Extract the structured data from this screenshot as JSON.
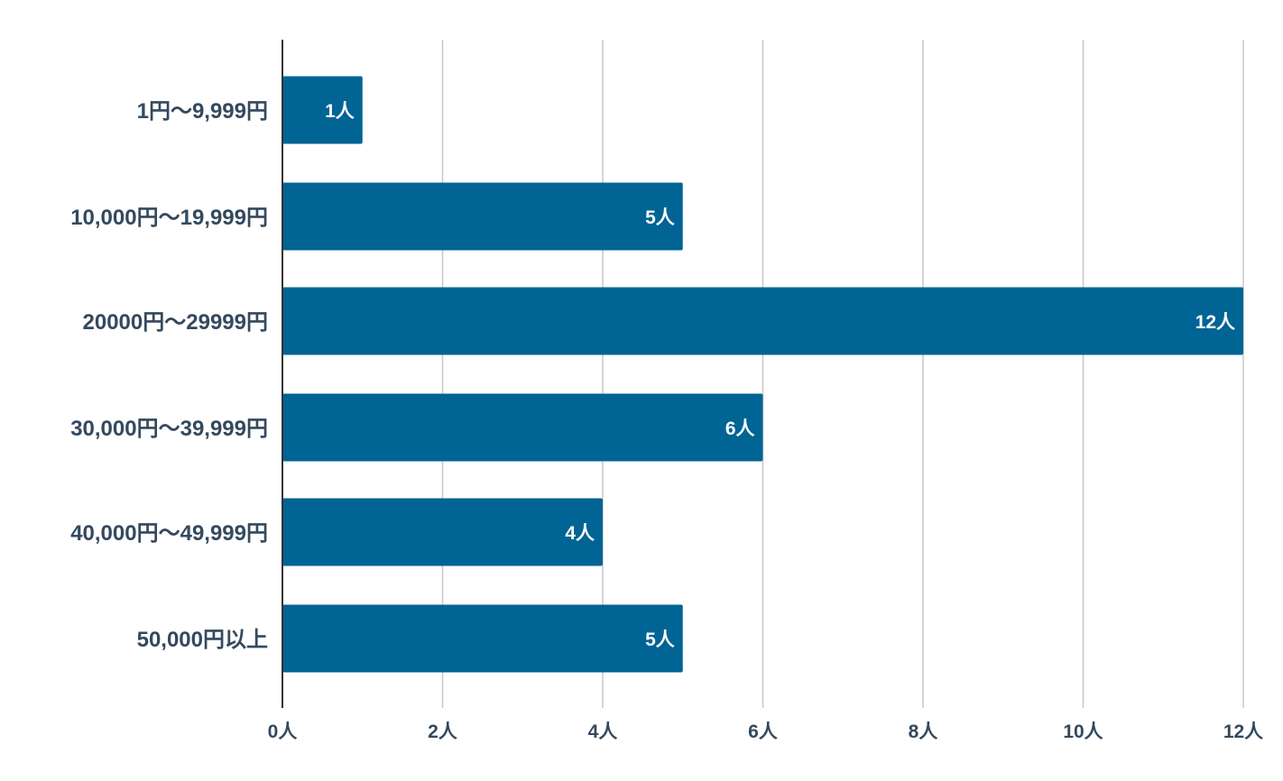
{
  "chart_data": {
    "type": "bar",
    "orientation": "horizontal",
    "title": "",
    "xlabel": "",
    "ylabel": "",
    "categories": [
      "1円〜9,999円",
      "10,000円〜19,999円",
      "20000円〜29999円",
      "30,000円〜39,999円",
      "40,000円〜49,999円",
      "50,000円以上"
    ],
    "values": [
      1,
      5,
      12,
      6,
      4,
      5
    ],
    "data_labels": [
      "1人",
      "5人",
      "12人",
      "6人",
      "4人",
      "5人"
    ],
    "xlim": [
      0,
      12
    ],
    "x_ticks": [
      0,
      2,
      4,
      6,
      8,
      10,
      12
    ],
    "x_tick_labels": [
      "0人",
      "2人",
      "4人",
      "6人",
      "8人",
      "10人",
      "12人"
    ],
    "grid": "vertical",
    "legend": "none",
    "colors": {
      "bar": "#006494",
      "grid": "#c8c8c8",
      "axis": "#333333",
      "label_text": "#34495e",
      "bar_label_text": "#ffffff"
    }
  }
}
